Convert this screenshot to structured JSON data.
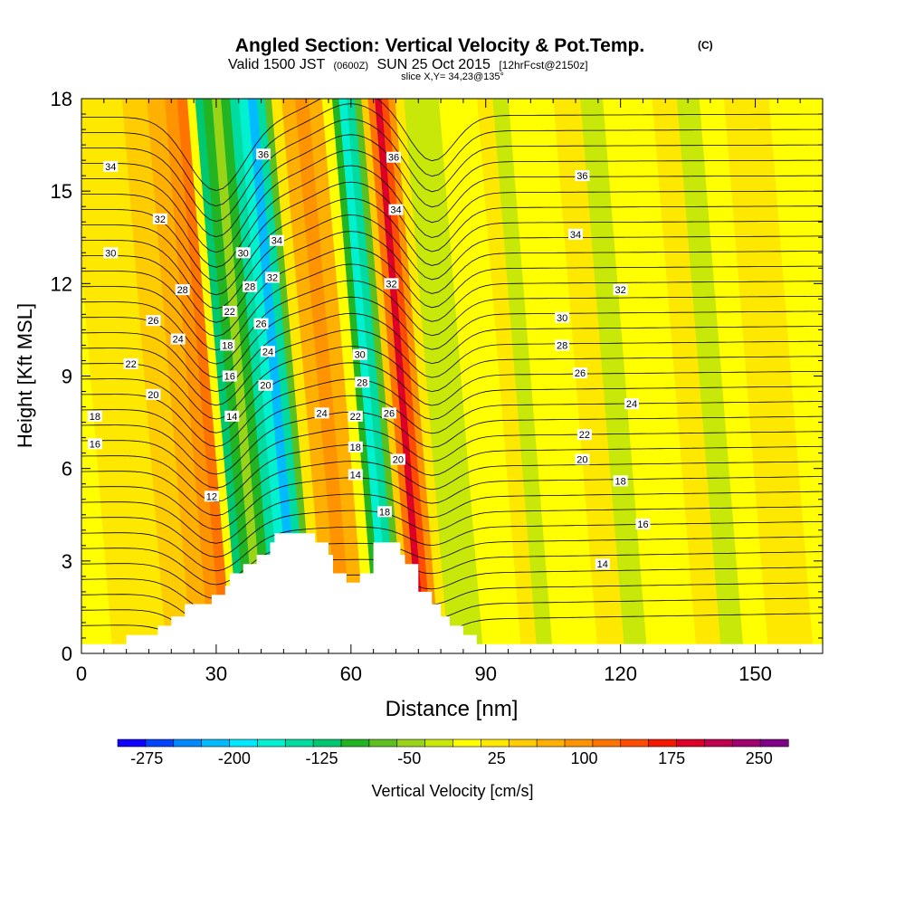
{
  "chart_data": {
    "type": "heatmap",
    "title": "Angled Section: Vertical Velocity & Pot.Temp.",
    "title_mark": "(C)",
    "subtitle": {
      "main": "Valid 1500 JST",
      "z": "(0600Z)",
      "date": "SUN 25 Oct 2015",
      "fcst": "[12hrFcst@2150z]"
    },
    "slice_label": "slice X,Y= 34,23@135°",
    "xlabel": "Distance [nm]",
    "ylabel": "Height [Kft MSL]",
    "xlim": [
      0,
      165
    ],
    "ylim": [
      0,
      18
    ],
    "xticks": [
      0,
      30,
      60,
      90,
      120,
      150
    ],
    "yticks": [
      0,
      3,
      6,
      9,
      12,
      15,
      18
    ],
    "colorbar": {
      "label": "Vertical Velocity [cm/s]",
      "levels": [
        -300,
        -275,
        -250,
        -225,
        -200,
        -175,
        -150,
        -125,
        -100,
        -75,
        -50,
        -25,
        0,
        25,
        50,
        75,
        100,
        125,
        150,
        175,
        200,
        225,
        250,
        275,
        300
      ],
      "tick_labels": [
        "-275",
        "-200",
        "-125",
        "-50",
        "25",
        "100",
        "175",
        "250"
      ],
      "tick_values": [
        -275,
        -200,
        -125,
        -50,
        25,
        100,
        175,
        250
      ],
      "colors": [
        "#0f00ff",
        "#0044ff",
        "#0088ff",
        "#00bbff",
        "#00e8ff",
        "#00f0d0",
        "#00dca0",
        "#00c870",
        "#22b422",
        "#5cc020",
        "#98d418",
        "#c8e80a",
        "#ffff00",
        "#ffe800",
        "#ffcc00",
        "#ffb000",
        "#ff9400",
        "#ff7400",
        "#ff4c00",
        "#f41800",
        "#dc0028",
        "#c00050",
        "#a00070",
        "#800088",
        "#5c00a0"
      ]
    },
    "vertical_velocity_columns": [
      {
        "x": 0,
        "w": 20
      },
      {
        "x": 4,
        "w": 20
      },
      {
        "x": 10,
        "w": 25
      },
      {
        "x": 16,
        "w": 30
      },
      {
        "x": 22,
        "w": 55
      },
      {
        "x": 27,
        "w": 80
      },
      {
        "x": 30,
        "w": 100
      },
      {
        "x": 32.5,
        "w": 125
      },
      {
        "x": 34.5,
        "w": 20
      },
      {
        "x": 36,
        "w": -110
      },
      {
        "x": 38,
        "w": -80
      },
      {
        "x": 40,
        "w": -50
      },
      {
        "x": 42,
        "w": -100
      },
      {
        "x": 44,
        "w": -140
      },
      {
        "x": 46,
        "w": -175
      },
      {
        "x": 48,
        "w": -225
      },
      {
        "x": 50,
        "w": -150
      },
      {
        "x": 51.5,
        "w": -60
      },
      {
        "x": 53,
        "w": 40
      },
      {
        "x": 56,
        "w": 80
      },
      {
        "x": 59,
        "w": 105
      },
      {
        "x": 62,
        "w": 75
      },
      {
        "x": 65,
        "w": 0
      },
      {
        "x": 66.5,
        "w": -90
      },
      {
        "x": 68,
        "w": -175
      },
      {
        "x": 70,
        "w": -150
      },
      {
        "x": 71.5,
        "w": -60
      },
      {
        "x": 73,
        "w": 50
      },
      {
        "x": 74.5,
        "w": 140
      },
      {
        "x": 76,
        "w": 200
      },
      {
        "x": 77.5,
        "w": 170
      },
      {
        "x": 79,
        "w": 100
      },
      {
        "x": 80.5,
        "w": 25
      },
      {
        "x": 83,
        "w": -25
      },
      {
        "x": 87,
        "w": -20
      },
      {
        "x": 92,
        "w": 10
      },
      {
        "x": 96,
        "w": 20
      },
      {
        "x": 100,
        "w": 30
      },
      {
        "x": 103,
        "w": -10
      },
      {
        "x": 107,
        "w": 20
      },
      {
        "x": 112,
        "w": 15
      },
      {
        "x": 118,
        "w": 25
      },
      {
        "x": 124,
        "w": -15
      },
      {
        "x": 128,
        "w": 20
      },
      {
        "x": 134,
        "w": 15
      },
      {
        "x": 140,
        "w": 25
      },
      {
        "x": 145,
        "w": -10
      },
      {
        "x": 150,
        "w": 20
      },
      {
        "x": 156,
        "w": 30
      },
      {
        "x": 161,
        "w": 25
      },
      {
        "x": 165,
        "w": 20
      }
    ],
    "potential_temperature_contours": {
      "units": "C",
      "levels": [
        12,
        14,
        16,
        18,
        20,
        22,
        24,
        26,
        28,
        30,
        32,
        34,
        36
      ],
      "labels": [
        {
          "text": "34",
          "x": 6.5,
          "y": 15.8
        },
        {
          "text": "32",
          "x": 17.5,
          "y": 14.1
        },
        {
          "text": "30",
          "x": 6.5,
          "y": 13.0
        },
        {
          "text": "28",
          "x": 22.5,
          "y": 11.8
        },
        {
          "text": "26",
          "x": 16,
          "y": 10.8
        },
        {
          "text": "24",
          "x": 21.5,
          "y": 10.2
        },
        {
          "text": "22",
          "x": 11,
          "y": 9.4
        },
        {
          "text": "20",
          "x": 16,
          "y": 8.4
        },
        {
          "text": "18",
          "x": 3,
          "y": 7.7
        },
        {
          "text": "16",
          "x": 3,
          "y": 6.8
        },
        {
          "text": "12",
          "x": 29,
          "y": 5.1
        },
        {
          "text": "36",
          "x": 40.5,
          "y": 16.2
        },
        {
          "text": "30",
          "x": 36,
          "y": 13.0
        },
        {
          "text": "34",
          "x": 43.5,
          "y": 13.4
        },
        {
          "text": "32",
          "x": 42.5,
          "y": 12.2
        },
        {
          "text": "28",
          "x": 37.5,
          "y": 11.9
        },
        {
          "text": "22",
          "x": 33,
          "y": 11.1
        },
        {
          "text": "26",
          "x": 40,
          "y": 10.7
        },
        {
          "text": "18",
          "x": 32.5,
          "y": 10.0
        },
        {
          "text": "24",
          "x": 41.5,
          "y": 9.8
        },
        {
          "text": "16",
          "x": 33,
          "y": 9.0
        },
        {
          "text": "20",
          "x": 41,
          "y": 8.7
        },
        {
          "text": "14",
          "x": 33.5,
          "y": 7.7
        },
        {
          "text": "24",
          "x": 53.5,
          "y": 7.8
        },
        {
          "text": "36",
          "x": 69.5,
          "y": 16.1
        },
        {
          "text": "34",
          "x": 70,
          "y": 14.4
        },
        {
          "text": "32",
          "x": 69,
          "y": 12.0
        },
        {
          "text": "30",
          "x": 62,
          "y": 9.7
        },
        {
          "text": "28",
          "x": 62.5,
          "y": 8.8
        },
        {
          "text": "22",
          "x": 61,
          "y": 7.7
        },
        {
          "text": "26",
          "x": 68.5,
          "y": 7.8
        },
        {
          "text": "18",
          "x": 61,
          "y": 6.7
        },
        {
          "text": "20",
          "x": 70.5,
          "y": 6.3
        },
        {
          "text": "14",
          "x": 61,
          "y": 5.8
        },
        {
          "text": "18",
          "x": 67.5,
          "y": 4.6
        },
        {
          "text": "36",
          "x": 111.5,
          "y": 15.5
        },
        {
          "text": "34",
          "x": 110,
          "y": 13.6
        },
        {
          "text": "32",
          "x": 120,
          "y": 11.8
        },
        {
          "text": "30",
          "x": 107,
          "y": 10.9
        },
        {
          "text": "28",
          "x": 107,
          "y": 10.0
        },
        {
          "text": "26",
          "x": 111,
          "y": 9.1
        },
        {
          "text": "24",
          "x": 122.5,
          "y": 8.1
        },
        {
          "text": "22",
          "x": 112,
          "y": 7.1
        },
        {
          "text": "20",
          "x": 111.5,
          "y": 6.3
        },
        {
          "text": "18",
          "x": 120,
          "y": 5.6
        },
        {
          "text": "16",
          "x": 125,
          "y": 4.2
        },
        {
          "text": "14",
          "x": 116,
          "y": 2.9
        }
      ]
    },
    "terrain_step_profile": [
      [
        0,
        0.3
      ],
      [
        10,
        0.3
      ],
      [
        10,
        0.6
      ],
      [
        17,
        0.6
      ],
      [
        17,
        0.9
      ],
      [
        20,
        0.9
      ],
      [
        20,
        1.2
      ],
      [
        23,
        1.2
      ],
      [
        23,
        1.6
      ],
      [
        29,
        1.6
      ],
      [
        29,
        1.9
      ],
      [
        32,
        1.9
      ],
      [
        32,
        2.2
      ],
      [
        33,
        2.2
      ],
      [
        33,
        2.6
      ],
      [
        36,
        2.6
      ],
      [
        36,
        2.9
      ],
      [
        39,
        2.9
      ],
      [
        39,
        3.2
      ],
      [
        42,
        3.2
      ],
      [
        42,
        3.6
      ],
      [
        43,
        3.6
      ],
      [
        43,
        3.9
      ],
      [
        52,
        3.9
      ],
      [
        52,
        3.6
      ],
      [
        55,
        3.6
      ],
      [
        55,
        3.2
      ],
      [
        56,
        3.2
      ],
      [
        56,
        2.6
      ],
      [
        59,
        2.6
      ],
      [
        59,
        2.3
      ],
      [
        62,
        2.3
      ],
      [
        62,
        2.6
      ],
      [
        65,
        2.6
      ],
      [
        65,
        3.6
      ],
      [
        71,
        3.6
      ],
      [
        71,
        3.2
      ],
      [
        72,
        3.2
      ],
      [
        72,
        2.9
      ],
      [
        75,
        2.9
      ],
      [
        75,
        2.0
      ],
      [
        78,
        2.0
      ],
      [
        78,
        1.6
      ],
      [
        80,
        1.6
      ],
      [
        80,
        1.2
      ],
      [
        82,
        1.2
      ],
      [
        82,
        0.9
      ],
      [
        85,
        0.9
      ],
      [
        85,
        0.6
      ],
      [
        88,
        0.6
      ],
      [
        88,
        0.3
      ],
      [
        165,
        0.3
      ]
    ]
  }
}
